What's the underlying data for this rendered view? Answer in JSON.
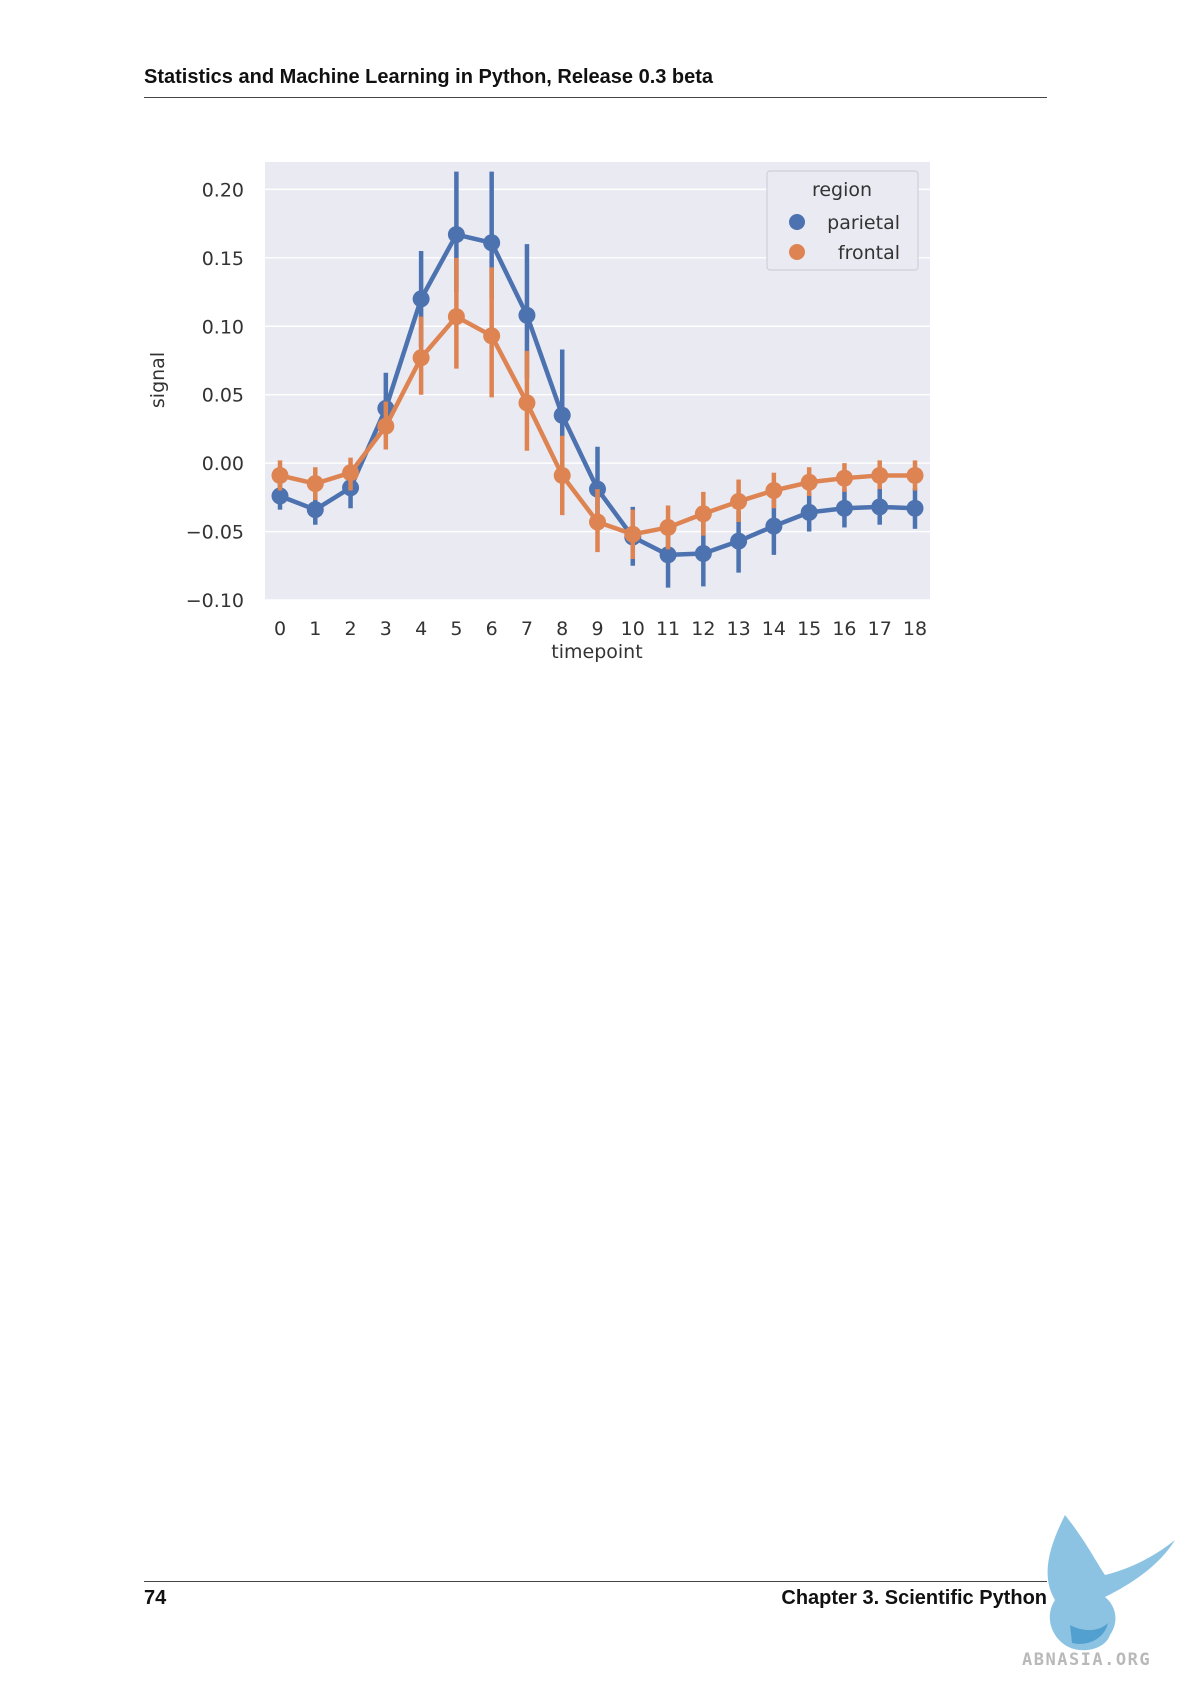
{
  "page": {
    "running_header": "Statistics and Machine Learning in Python, Release 0.3 beta",
    "page_number": "74",
    "chapter_title": "Chapter 3.  Scientific Python",
    "watermark_text": "ABNASIA.ORG"
  },
  "colors": {
    "plot_background": "#EAEAF2",
    "grid": "#FFFFFF",
    "parietal": "#4C72B0",
    "frontal": "#DD8452"
  },
  "chart_data": {
    "type": "line",
    "style": "pointplot with 95% confidence-interval error bars",
    "xlabel": "timepoint",
    "ylabel": "signal",
    "categories": [
      "0",
      "1",
      "2",
      "3",
      "4",
      "5",
      "6",
      "7",
      "8",
      "9",
      "10",
      "11",
      "12",
      "13",
      "14",
      "15",
      "16",
      "17",
      "18"
    ],
    "yticks": [
      "0.20",
      "0.15",
      "0.10",
      "0.05",
      "0.00",
      "−0.05",
      "−0.10"
    ],
    "ylim": [
      -0.1,
      0.22
    ],
    "grid": true,
    "legend": {
      "title": "region",
      "position": "top-right",
      "entries": [
        "parietal",
        "frontal"
      ]
    },
    "series": [
      {
        "name": "parietal",
        "color": "#4C72B0",
        "values": [
          -0.024,
          -0.034,
          -0.018,
          0.04,
          0.12,
          0.167,
          0.161,
          0.108,
          0.035,
          -0.019,
          -0.054,
          -0.067,
          -0.066,
          -0.057,
          -0.046,
          -0.036,
          -0.033,
          -0.032,
          -0.033
        ],
        "ci_low": [
          -0.034,
          -0.045,
          -0.033,
          0.025,
          0.085,
          0.125,
          0.12,
          0.062,
          -0.01,
          -0.048,
          -0.075,
          -0.091,
          -0.09,
          -0.08,
          -0.067,
          -0.05,
          -0.047,
          -0.045,
          -0.048
        ],
        "ci_high": [
          -0.014,
          -0.023,
          -0.004,
          0.066,
          0.155,
          0.213,
          0.213,
          0.16,
          0.083,
          0.012,
          -0.032,
          -0.045,
          -0.042,
          -0.035,
          -0.024,
          -0.022,
          -0.019,
          -0.018,
          -0.018
        ]
      },
      {
        "name": "frontal",
        "color": "#DD8452",
        "values": [
          -0.009,
          -0.015,
          -0.007,
          0.027,
          0.077,
          0.107,
          0.093,
          0.044,
          -0.009,
          -0.043,
          -0.052,
          -0.047,
          -0.037,
          -0.028,
          -0.02,
          -0.014,
          -0.011,
          -0.009,
          -0.009
        ],
        "ci_low": [
          -0.02,
          -0.027,
          -0.02,
          0.01,
          0.05,
          0.069,
          0.048,
          0.009,
          -0.038,
          -0.065,
          -0.07,
          -0.063,
          -0.053,
          -0.043,
          -0.033,
          -0.024,
          -0.021,
          -0.019,
          -0.02
        ],
        "ci_high": [
          0.002,
          -0.003,
          0.004,
          0.045,
          0.107,
          0.15,
          0.143,
          0.082,
          0.02,
          -0.019,
          -0.034,
          -0.031,
          -0.021,
          -0.012,
          -0.007,
          -0.003,
          0.0,
          0.002,
          0.002
        ]
      }
    ]
  }
}
